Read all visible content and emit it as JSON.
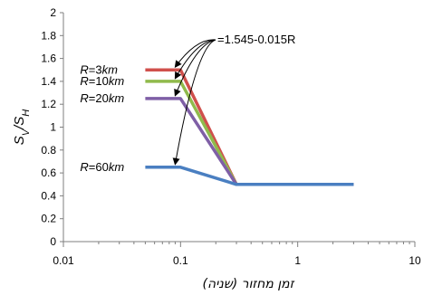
{
  "chart_data": {
    "type": "line",
    "xscale": "log",
    "xlim": [
      0.01,
      10
    ],
    "ylim": [
      0,
      2
    ],
    "xticks": [
      0.01,
      0.1,
      1,
      10
    ],
    "xtick_labels": [
      "0.01",
      "0.1",
      "1",
      "10"
    ],
    "yticks": [
      0,
      0.2,
      0.4,
      0.6,
      0.8,
      1,
      1.2,
      1.4,
      1.6,
      1.8,
      2
    ],
    "ytick_labels": [
      "0",
      "0.2",
      "0.4",
      "0.6",
      "0.8",
      "1",
      "1.2",
      "1.4",
      "1.6",
      "1.8",
      "2"
    ],
    "xlabel": "זמן מחזור (שניה)",
    "ylabel": "SV/SH",
    "grid": false,
    "annotation": "=1.545-0.015R",
    "series": [
      {
        "name": "R=3km",
        "label_parts": [
          "R",
          "=3",
          "km"
        ],
        "color": "#d0504c",
        "x": [
          0.05,
          0.1,
          0.3,
          3
        ],
        "y": [
          1.5,
          1.5,
          0.5,
          0.5
        ]
      },
      {
        "name": "R=10km",
        "label_parts": [
          "R",
          "=10",
          "km"
        ],
        "color": "#90ba4c",
        "x": [
          0.05,
          0.1,
          0.3,
          3
        ],
        "y": [
          1.4,
          1.4,
          0.5,
          0.5
        ]
      },
      {
        "name": "R=20km",
        "label_parts": [
          "R",
          "=20",
          "km"
        ],
        "color": "#7f5fa6",
        "x": [
          0.05,
          0.1,
          0.3,
          3
        ],
        "y": [
          1.25,
          1.25,
          0.5,
          0.5
        ]
      },
      {
        "name": "R=60km",
        "label_parts": [
          "R",
          "=60",
          "km"
        ],
        "color": "#4a7fc1",
        "x": [
          0.05,
          0.1,
          0.3,
          3
        ],
        "y": [
          0.65,
          0.65,
          0.5,
          0.5
        ]
      }
    ]
  }
}
